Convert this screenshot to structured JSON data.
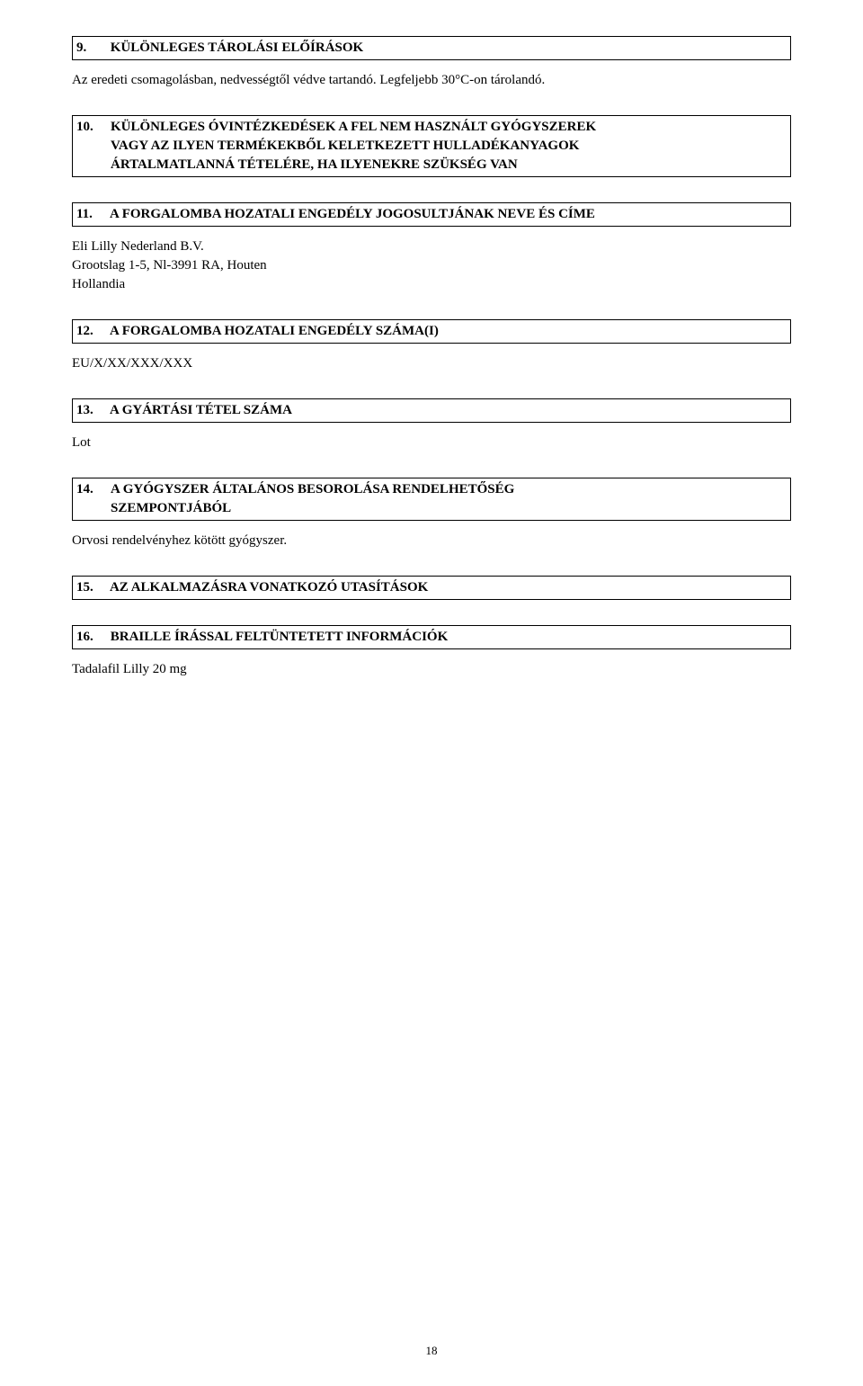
{
  "sections": {
    "s9": {
      "number": "9.",
      "title": "KÜLÖNLEGES TÁROLÁSI ELŐÍRÁSOK",
      "body": "Az eredeti csomagolásban, nedvességtől védve tartandó. Legfeljebb 30°C-on tárolandó."
    },
    "s10": {
      "number": "10.",
      "title_line1": "KÜLÖNLEGES ÓVINTÉZKEDÉSEK A FEL NEM HASZNÁLT GYÓGYSZEREK",
      "title_line2": "VAGY AZ ILYEN TERMÉKEKBŐL KELETKEZETT HULLADÉKANYAGOK",
      "title_line3": "ÁRTALMATLANNÁ TÉTELÉRE, HA ILYENEKRE SZÜKSÉG VAN"
    },
    "s11": {
      "number": "11.",
      "title": "A FORGALOMBA HOZATALI ENGEDÉLY JOGOSULTJÁNAK NEVE ÉS CÍME",
      "body_line1": "Eli Lilly Nederland B.V.",
      "body_line2": "Grootslag 1-5, Nl-3991 RA, Houten",
      "body_line3": "Hollandia"
    },
    "s12": {
      "number": "12.",
      "title": "A FORGALOMBA HOZATALI ENGEDÉLY SZÁMA(I)",
      "body": "EU/X/XX/XXX/XXX"
    },
    "s13": {
      "number": "13.",
      "title": "A GYÁRTÁSI TÉTEL SZÁMA",
      "body": "Lot"
    },
    "s14": {
      "number": "14.",
      "title_line1": "A GYÓGYSZER ÁLTALÁNOS BESOROLÁSA RENDELHETŐSÉG",
      "title_line2": "SZEMPONTJÁBÓL",
      "body": "Orvosi rendelvényhez kötött gyógyszer."
    },
    "s15": {
      "number": "15.",
      "title": "AZ ALKALMAZÁSRA VONATKOZÓ UTASÍTÁSOK"
    },
    "s16": {
      "number": "16.",
      "title": "BRAILLE ÍRÁSSAL FELTÜNTETETT INFORMÁCIÓK",
      "body": "Tadalafil Lilly 20 mg"
    }
  },
  "page_number": "18"
}
